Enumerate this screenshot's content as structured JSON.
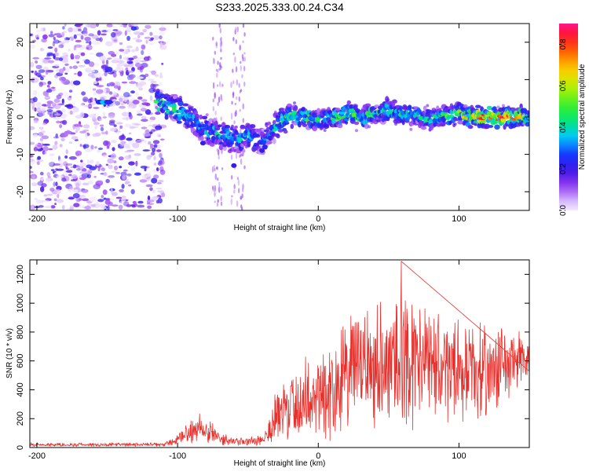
{
  "title": "S233.2025.333.00.24.C34",
  "chart_data": [
    {
      "type": "heatmap",
      "xlabel": "Height of straight line (km)",
      "ylabel": "Frequency (Hz)",
      "xlim": [
        -205,
        150
      ],
      "ylim": [
        -25,
        25
      ],
      "xticks": [
        -200,
        -100,
        0,
        100
      ],
      "xtick_labels": [
        "-200",
        "-100",
        "0",
        "100"
      ],
      "yticks": [
        -20,
        -10,
        0,
        10,
        20
      ],
      "ytick_labels": [
        "-20",
        "-10",
        "0",
        "10",
        "20"
      ],
      "colorbar": {
        "label": "Normalized spectral amplitude",
        "range": [
          0,
          0.9
        ],
        "ticks": [
          0,
          0.2,
          0.4,
          0.6,
          0.8
        ],
        "tick_labels": [
          "0.0",
          "0.2",
          "0.4",
          "0.6",
          "0.8"
        ]
      },
      "ridge": {
        "x": [
          -153,
          -110,
          -95,
          -85,
          -75,
          -60,
          -50,
          -40,
          -30,
          -20,
          -10,
          0,
          10,
          20,
          30,
          40,
          50,
          60,
          70,
          80,
          90,
          100,
          110,
          120,
          130,
          140,
          150
        ],
        "y": [
          4,
          3.5,
          1,
          -2,
          -4,
          -6,
          -5,
          -7,
          -2,
          0,
          0,
          -1,
          0,
          1,
          0,
          1,
          2,
          0,
          1,
          -1,
          0,
          1,
          0,
          0,
          0,
          0,
          0
        ],
        "peak_amplitude": [
          0.3,
          0.55,
          0.45,
          0.4,
          0.4,
          0.4,
          0.45,
          0.3,
          0.45,
          0.55,
          0.5,
          0.45,
          0.5,
          0.6,
          0.55,
          0.5,
          0.55,
          0.5,
          0.45,
          0.5,
          0.5,
          0.6,
          0.7,
          0.85,
          0.85,
          0.75,
          0.5
        ]
      },
      "noise_region_x": [
        -205,
        -110
      ]
    },
    {
      "type": "line",
      "xlabel": "Height of straight line (km)",
      "ylabel": "SNR (10 * v/v)",
      "xlim": [
        -205,
        150
      ],
      "ylim": [
        0,
        1300
      ],
      "xticks": [
        -200,
        -100,
        0,
        100
      ],
      "xtick_labels": [
        "-200",
        "-100",
        "0",
        "100"
      ],
      "yticks": [
        0,
        200,
        400,
        600,
        800,
        1000,
        1200
      ],
      "ytick_labels": [
        "0",
        "200",
        "400",
        "600",
        "800",
        "1000",
        "1200"
      ],
      "series": [
        {
          "name": "SNR",
          "color": "#e8312d",
          "envelope_x": [
            -205,
            -110,
            -100,
            -90,
            -80,
            -70,
            -60,
            -50,
            -40,
            -35,
            -30,
            -20,
            -10,
            0,
            10,
            20,
            30,
            40,
            50,
            60,
            70,
            80,
            90,
            100,
            110,
            120,
            130,
            140,
            150
          ],
          "envelope_mean": [
            20,
            20,
            50,
            120,
            150,
            60,
            40,
            40,
            60,
            120,
            200,
            280,
            330,
            380,
            400,
            500,
            580,
            580,
            600,
            620,
            600,
            560,
            560,
            540,
            520,
            520,
            560,
            580,
            620
          ],
          "envelope_amplitude": [
            15,
            15,
            40,
            110,
            140,
            50,
            30,
            40,
            60,
            150,
            220,
            300,
            340,
            380,
            420,
            450,
            480,
            500,
            550,
            600,
            500,
            450,
            420,
            400,
            380,
            350,
            330,
            300,
            150
          ],
          "peak": {
            "x": 59,
            "y": 1290
          }
        }
      ]
    }
  ]
}
